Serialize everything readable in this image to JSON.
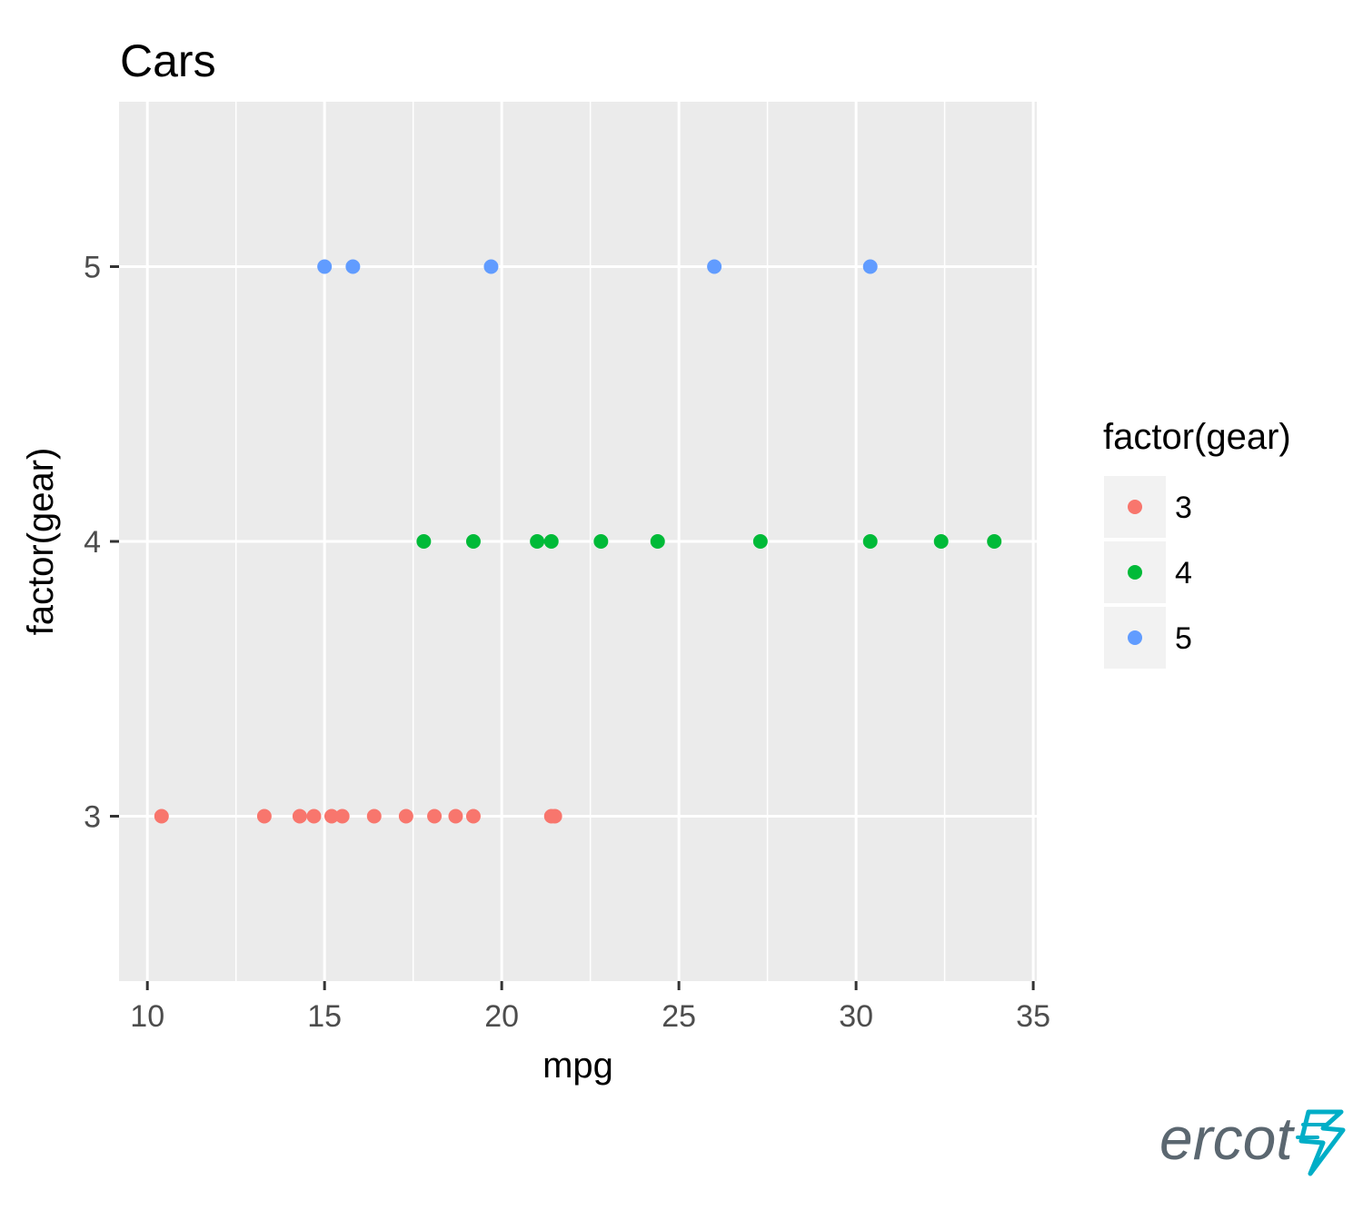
{
  "chart_data": {
    "type": "scatter",
    "title": "Cars",
    "xlabel": "mpg",
    "ylabel": "factor(gear)",
    "xlim": [
      9.2,
      35.1
    ],
    "ylim": [
      2.4,
      5.6
    ],
    "x_ticks": [
      10,
      15,
      20,
      25,
      30,
      35
    ],
    "y_ticks": [
      3,
      4,
      5
    ],
    "grid": true,
    "legend": {
      "title": "factor(gear)",
      "position": "right",
      "entries": [
        "3",
        "4",
        "5"
      ]
    },
    "series": [
      {
        "name": "3",
        "color": "#F8766D",
        "y": 3,
        "x": [
          10.4,
          13.3,
          14.3,
          14.7,
          15.2,
          15.5,
          16.4,
          17.3,
          18.1,
          18.7,
          19.2,
          21.4,
          21.5
        ]
      },
      {
        "name": "4",
        "color": "#00BA38",
        "y": 4,
        "x": [
          17.8,
          19.2,
          21.0,
          21.4,
          22.8,
          24.4,
          27.3,
          30.4,
          32.4,
          33.9
        ]
      },
      {
        "name": "5",
        "color": "#619CFF",
        "y": 5,
        "x": [
          15.0,
          15.8,
          19.7,
          26.0,
          30.4
        ]
      }
    ]
  },
  "logo": {
    "text": "ercot",
    "color": "#5b6770",
    "accent_color": "#00AEC7",
    "icon": "lightning-bolt-icon"
  },
  "colors": {
    "panel_background": "#EBEBEB",
    "grid": "#FFFFFF",
    "legend_key_background": "#F2F2F2"
  }
}
